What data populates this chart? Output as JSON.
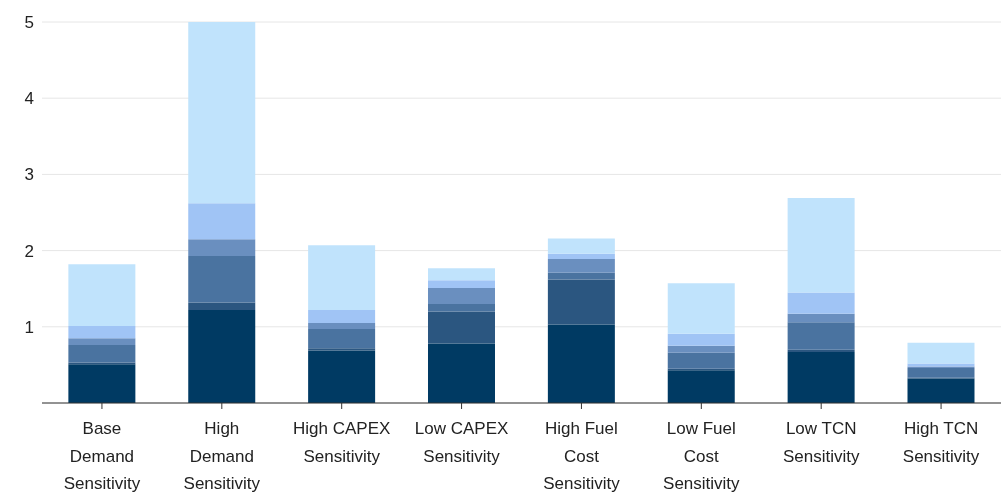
{
  "chart_data": {
    "type": "bar",
    "stacked": true,
    "categories": [
      "Base Demand Sensitivity",
      "High Demand Sensitivity",
      "High CAPEX Sensitivity",
      "Low CAPEX Sensitivity",
      "High Fuel Cost Sensitivity",
      "Low Fuel Cost Sensitivity",
      "Low TCN Sensitivity",
      "High TCN Sensitivity"
    ],
    "series": [
      {
        "color": "#003a63",
        "values": [
          0.51,
          1.22,
          0.69,
          0.78,
          1.03,
          0.43,
          0.67,
          0.32
        ]
      },
      {
        "color": "#2b5680",
        "values": [
          0.02,
          0.1,
          0.03,
          0.42,
          0.59,
          0.02,
          0.03,
          0.01
        ]
      },
      {
        "color": "#4a73a0",
        "values": [
          0.23,
          0.61,
          0.25,
          0.1,
          0.09,
          0.21,
          0.36,
          0.13
        ]
      },
      {
        "color": "#6a8fbf",
        "values": [
          0.09,
          0.22,
          0.08,
          0.21,
          0.18,
          0.09,
          0.11,
          0.02
        ]
      },
      {
        "color": "#a0c4f5",
        "values": [
          0.16,
          0.47,
          0.17,
          0.1,
          0.07,
          0.16,
          0.28,
          0.04
        ]
      },
      {
        "color": "#c0e3fc",
        "values": [
          0.81,
          2.38,
          0.85,
          0.16,
          0.2,
          0.66,
          1.24,
          0.27
        ]
      }
    ],
    "ylim": [
      0,
      5
    ],
    "yticks": [
      1,
      2,
      3,
      4,
      5
    ],
    "grid": "y",
    "legend": false
  }
}
